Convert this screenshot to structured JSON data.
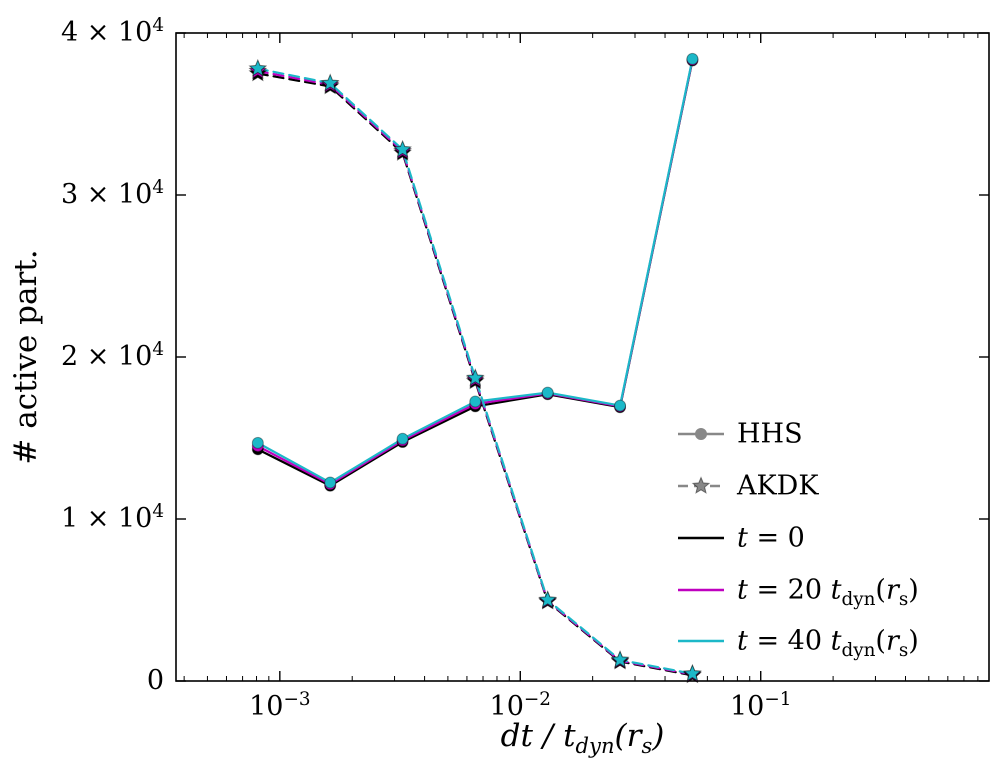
{
  "figure": {
    "background": "#ffffff"
  },
  "chart_data": {
    "type": "line",
    "x_scale": "log",
    "y_scale": "linear",
    "title": "",
    "xlabel": "dt / t_dyn(r_s)",
    "ylabel": "# active part.",
    "xlim": [
      0.00037,
      0.89
    ],
    "ylim": [
      0,
      40000
    ],
    "grid": false,
    "x_ticks": [
      {
        "value": 0.001,
        "label": "10^-3"
      },
      {
        "value": 0.01,
        "label": "10^-2"
      },
      {
        "value": 0.1,
        "label": "10^-1"
      }
    ],
    "y_ticks": [
      {
        "value": 0,
        "label": "0"
      },
      {
        "value": 10000,
        "label": "1 × 10^4"
      },
      {
        "value": 20000,
        "label": "2 × 10^4"
      },
      {
        "value": 30000,
        "label": "3 × 10^4"
      },
      {
        "value": 40000,
        "label": "4 × 10^4"
      }
    ],
    "x": [
      0.00081,
      0.00162,
      0.00324,
      0.0065,
      0.013,
      0.026,
      0.052
    ],
    "series": [
      {
        "name": "HHS t = 0",
        "group": "HHS",
        "style": "solid",
        "marker": "circle",
        "color": "#000000",
        "values": [
          14300,
          12050,
          14750,
          16950,
          17700,
          16900,
          38300
        ]
      },
      {
        "name": "HHS t = 20",
        "group": "HHS",
        "style": "solid",
        "marker": "circle",
        "color": "#bf00bf",
        "values": [
          14500,
          12150,
          14850,
          17100,
          17750,
          16950,
          38350
        ]
      },
      {
        "name": "HHS t = 40",
        "group": "HHS",
        "style": "solid",
        "marker": "circle",
        "color": "#1cb8c8",
        "values": [
          14700,
          12250,
          14950,
          17250,
          17800,
          17000,
          38400
        ]
      },
      {
        "name": "AKDK t = 0",
        "group": "AKDK",
        "style": "dashed",
        "marker": "star",
        "color": "#000000",
        "values": [
          37500,
          36700,
          32600,
          18500,
          4900,
          1200,
          350
        ]
      },
      {
        "name": "AKDK t = 20",
        "group": "AKDK",
        "style": "dashed",
        "marker": "star",
        "color": "#bf00bf",
        "values": [
          37650,
          36800,
          32700,
          18600,
          4950,
          1250,
          400
        ]
      },
      {
        "name": "AKDK t = 40",
        "group": "AKDK",
        "style": "dashed",
        "marker": "star",
        "color": "#1cb8c8",
        "values": [
          37800,
          36900,
          32800,
          18700,
          5000,
          1300,
          450
        ]
      }
    ],
    "legend": {
      "position": "inside lower right",
      "frame": false,
      "entries": [
        {
          "label": "HHS",
          "color": "#888888",
          "style": "solid",
          "marker": "circle"
        },
        {
          "label": "AKDK",
          "color": "#888888",
          "style": "dashed",
          "marker": "star"
        },
        {
          "label": "t = 0",
          "color": "#000000",
          "style": "solid",
          "marker": "none"
        },
        {
          "label": "t = 20 t_dyn(r_s)",
          "color": "#bf00bf",
          "style": "solid",
          "marker": "none"
        },
        {
          "label": "t = 40 t_dyn(r_s)",
          "color": "#1cb8c8",
          "style": "solid",
          "marker": "none"
        }
      ]
    }
  }
}
